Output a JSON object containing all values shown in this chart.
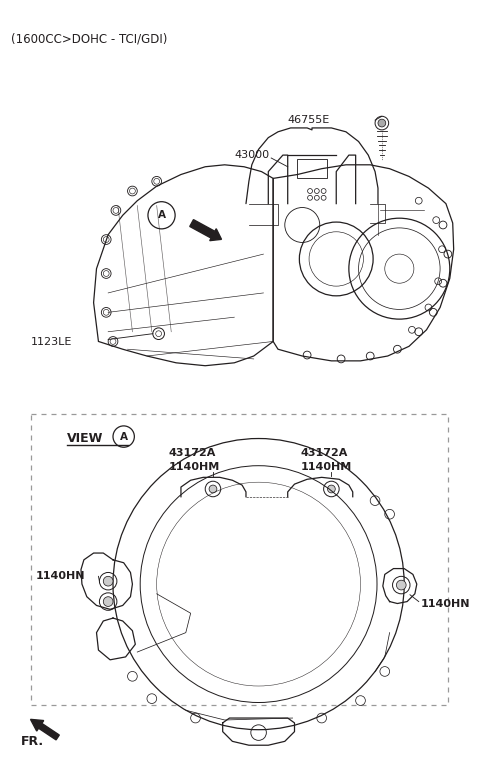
{
  "title": "(1600CC>DOHC - TCI/GDI)",
  "bg_color": "#ffffff",
  "fg_color": "#231f20",
  "label_46755E": "46755E",
  "label_43000": "43000",
  "label_1123LE": "1123LE",
  "label_43172A": "43172A",
  "label_1140HM": "1140HM",
  "label_1140HN": "1140HN",
  "label_VIEW_A": "VIEW",
  "label_FR": "FR.",
  "dashed_color": "#888888",
  "line_width": 0.9
}
